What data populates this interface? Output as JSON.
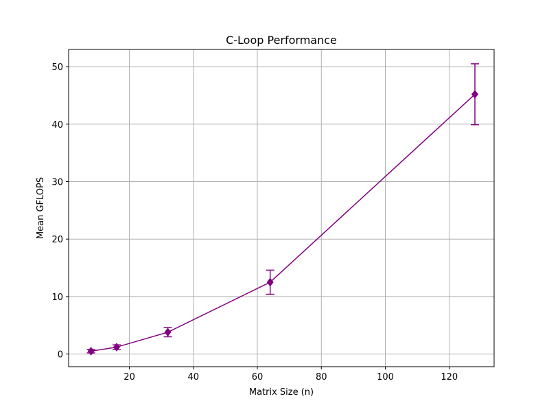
{
  "chart_data": {
    "type": "line",
    "title": "C-Loop Performance",
    "xlabel": "Matrix Size (n)",
    "ylabel": "Mean GFLOPS",
    "xlim": [
      1.0,
      134.0
    ],
    "ylim": [
      -2.2,
      53.0
    ],
    "xticks": [
      20,
      40,
      60,
      80,
      100,
      120
    ],
    "yticks": [
      0,
      10,
      20,
      30,
      40,
      50
    ],
    "grid": true,
    "series": [
      {
        "color": "#800080",
        "marker": "diamond",
        "x": [
          8,
          16,
          32,
          64,
          128
        ],
        "y": [
          0.5,
          1.2,
          3.8,
          12.5,
          45.2
        ],
        "yerr": [
          0.3,
          0.4,
          0.8,
          2.1,
          5.3
        ]
      }
    ]
  }
}
